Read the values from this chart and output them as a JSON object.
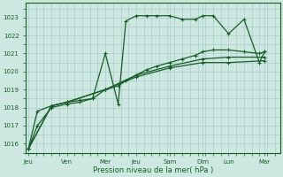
{
  "background_color": "#cce8e0",
  "grid_color": "#aacccc",
  "line_color": "#1a5c28",
  "xlabel": "Pression niveau de la mer( hPa )",
  "ylim": [
    1015.5,
    1023.8
  ],
  "yticks": [
    1016,
    1017,
    1018,
    1019,
    1020,
    1021,
    1022,
    1023
  ],
  "xlim": [
    -0.1,
    9.8
  ],
  "x_tick_positions": [
    0.0,
    1.5,
    3.0,
    4.2,
    5.5,
    6.8,
    7.8,
    9.2
  ],
  "x_labels": [
    "Jeu",
    "Ven",
    "Mer",
    "Jeu",
    "Sam",
    "Dim",
    "Lun",
    "Mar"
  ],
  "s1_x": [
    0.0,
    0.35,
    0.9,
    1.5,
    2.0,
    2.5,
    3.0,
    3.5,
    3.8,
    4.2,
    4.6,
    5.0,
    5.5,
    6.0,
    6.5,
    6.8,
    7.2,
    7.8,
    8.4,
    9.0,
    9.2
  ],
  "s1_y": [
    1015.7,
    1017.0,
    1018.0,
    1018.2,
    1018.3,
    1018.5,
    1021.0,
    1018.2,
    1022.8,
    1023.1,
    1023.1,
    1023.1,
    1023.1,
    1022.9,
    1022.9,
    1023.1,
    1023.1,
    1022.1,
    1022.9,
    1020.5,
    1021.1
  ],
  "s2_x": [
    0.0,
    0.35,
    0.9,
    1.5,
    2.0,
    2.5,
    3.0,
    3.5,
    3.8,
    4.2,
    4.6,
    5.0,
    5.5,
    6.0,
    6.5,
    6.8,
    7.2,
    7.8,
    8.4,
    9.0,
    9.2
  ],
  "s2_y": [
    1015.7,
    1017.8,
    1018.1,
    1018.3,
    1018.4,
    1018.5,
    1019.0,
    1019.2,
    1019.5,
    1019.8,
    1020.1,
    1020.3,
    1020.5,
    1020.7,
    1020.9,
    1021.1,
    1021.2,
    1021.2,
    1021.1,
    1021.0,
    1021.1
  ],
  "s3_x": [
    0.0,
    0.9,
    1.5,
    3.0,
    4.2,
    5.5,
    6.8,
    7.8,
    9.2
  ],
  "s3_y": [
    1015.7,
    1018.1,
    1018.3,
    1019.0,
    1019.8,
    1020.3,
    1020.7,
    1020.8,
    1020.8
  ],
  "s4_x": [
    0.0,
    0.9,
    1.5,
    3.0,
    4.2,
    5.5,
    6.8,
    7.8,
    9.2
  ],
  "s4_y": [
    1015.7,
    1018.1,
    1018.3,
    1019.0,
    1019.7,
    1020.2,
    1020.5,
    1020.5,
    1020.6
  ]
}
